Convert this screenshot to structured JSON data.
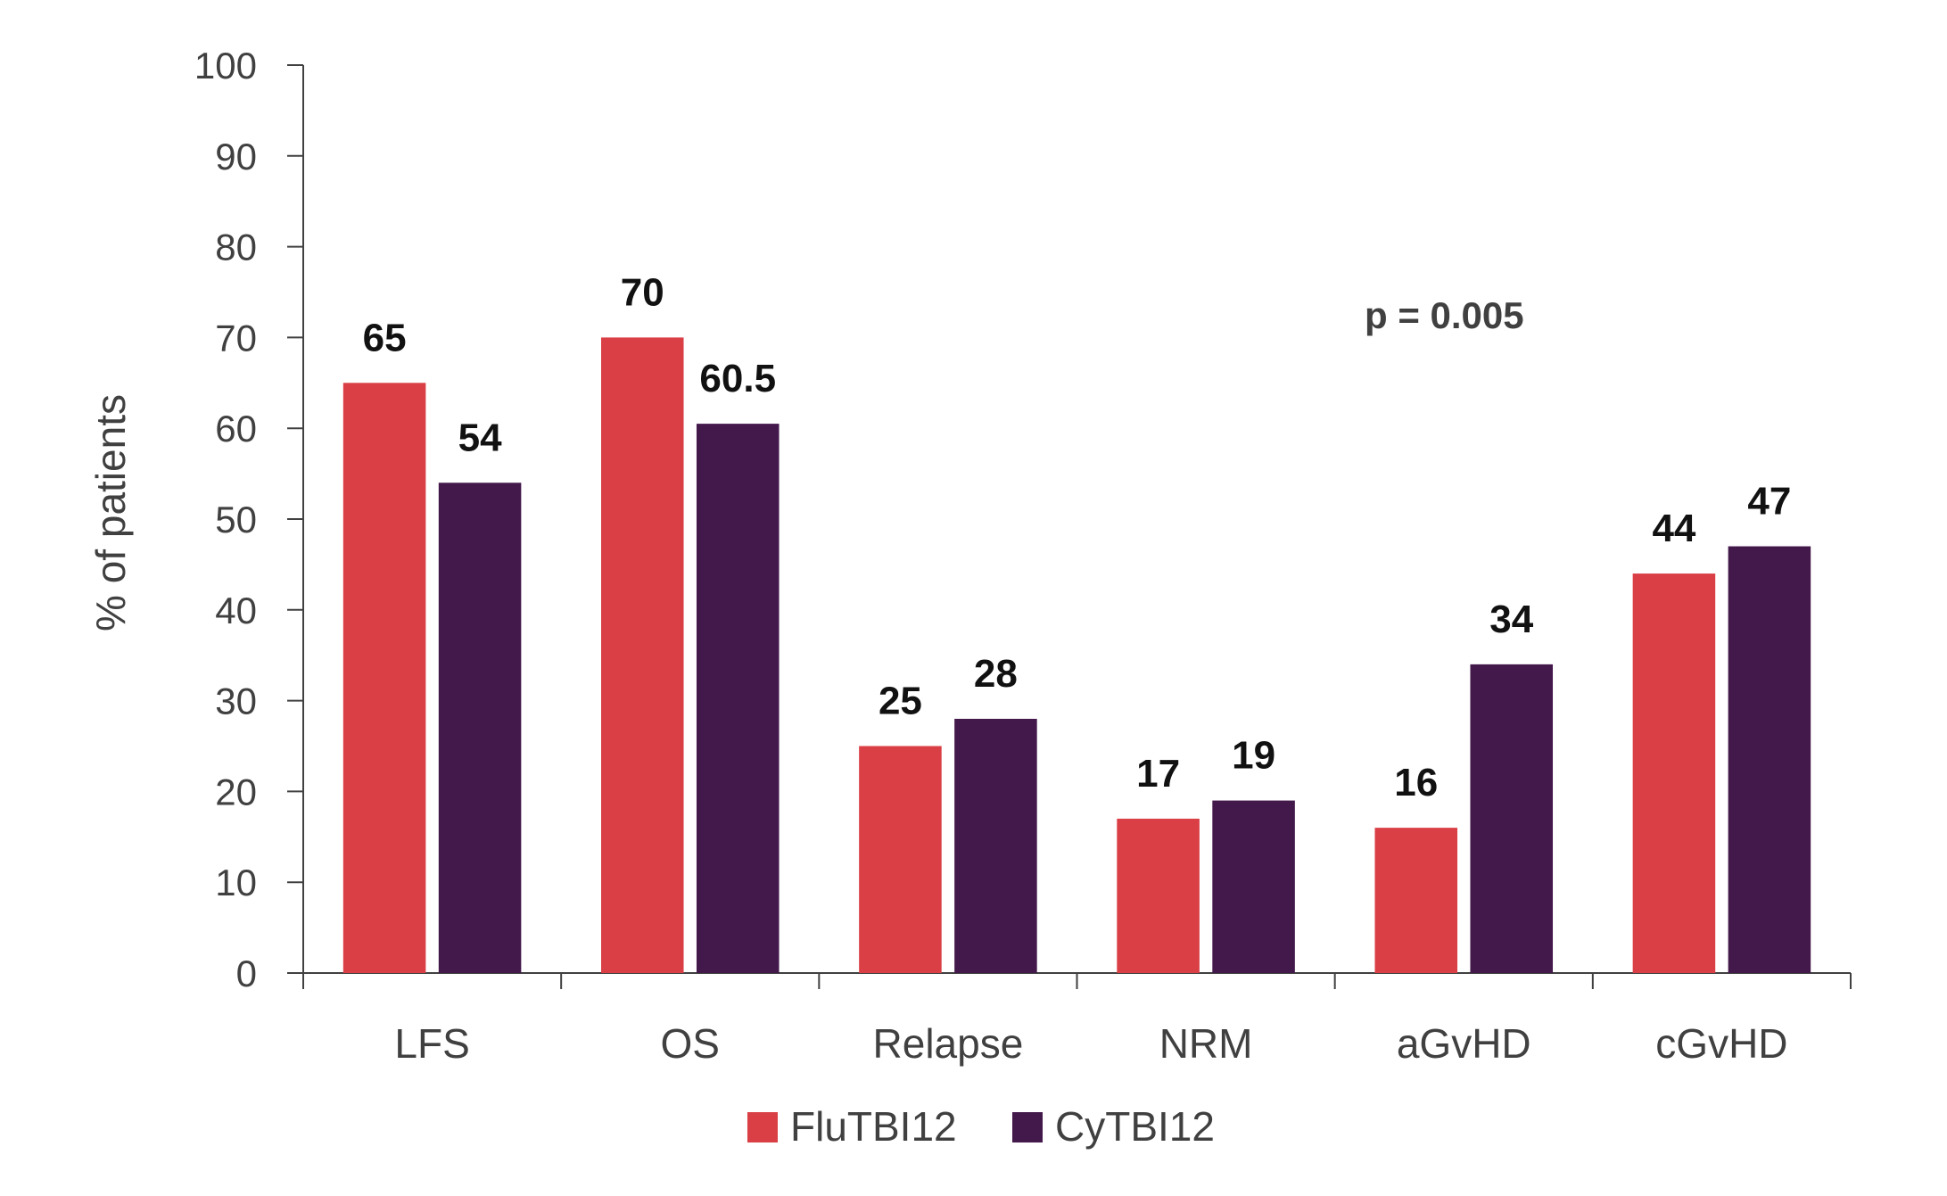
{
  "chart_data": {
    "type": "bar",
    "categories": [
      "LFS",
      "OS",
      "Relapse",
      "NRM",
      "aGvHD",
      "cGvHD"
    ],
    "series": [
      {
        "name": "FluTBI12",
        "color": "#d93f45",
        "values": [
          65,
          70,
          25,
          17,
          16,
          44
        ],
        "labels": [
          "65",
          "70",
          "25",
          "17",
          "16",
          "44"
        ]
      },
      {
        "name": "CyTBI12",
        "color": "#43184a",
        "values": [
          54,
          60.5,
          28,
          19,
          34,
          47
        ],
        "labels": [
          "54",
          "60.5",
          "28",
          "19",
          "34",
          "47"
        ]
      }
    ],
    "ylabel": "% of patients",
    "ylim": [
      0,
      100
    ],
    "yticks": [
      "0",
      "10",
      "20",
      "30",
      "40",
      "50",
      "60",
      "70",
      "80",
      "90",
      "100"
    ],
    "annotation": "p = 0.005",
    "legend_position": "bottom-center",
    "grid": false
  }
}
